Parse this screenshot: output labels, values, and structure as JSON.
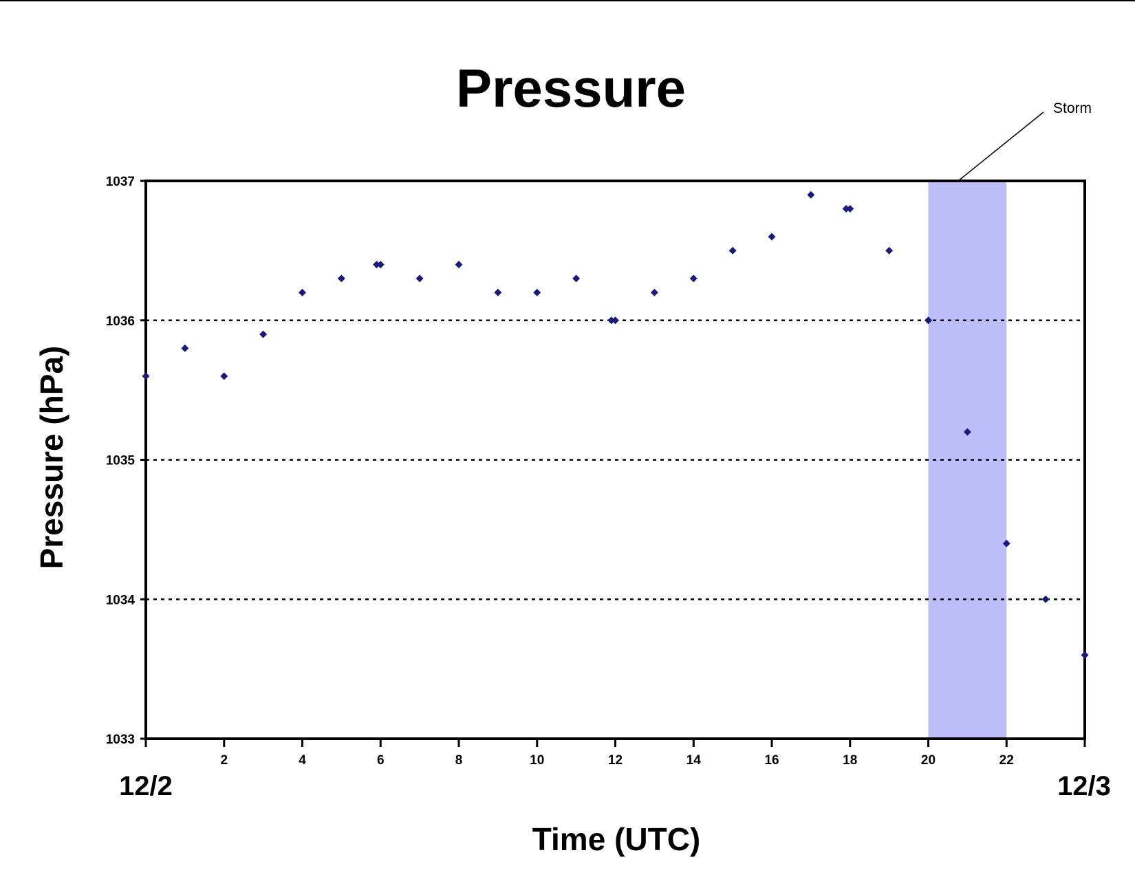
{
  "chart_data": {
    "type": "scatter",
    "title": "Pressure",
    "xlabel": "Time (UTC)",
    "ylabel": "Pressure (hPa)",
    "xlim": [
      0,
      24
    ],
    "ylim": [
      1033,
      1037
    ],
    "x_ticks": [
      0,
      2,
      4,
      6,
      8,
      10,
      12,
      14,
      16,
      18,
      20,
      22,
      24
    ],
    "x_tick_labels": [
      "",
      "2",
      "4",
      "6",
      "8",
      "10",
      "12",
      "14",
      "16",
      "18",
      "20",
      "22",
      ""
    ],
    "y_ticks": [
      1033,
      1034,
      1035,
      1036,
      1037
    ],
    "y_tick_labels": [
      "1033",
      "1034",
      "1035",
      "1036",
      "1037"
    ],
    "date_labels": {
      "start": "12/2",
      "end": "12/3"
    },
    "gridlines": "horizontal dotted",
    "marker_color": "#1a1a7a",
    "highlight": {
      "label": "Storm",
      "x_range": [
        20,
        22
      ],
      "color": "#bdbdfa"
    },
    "series": [
      {
        "points": [
          [
            0,
            1035.6
          ],
          [
            1,
            1035.8
          ],
          [
            2,
            1035.6
          ],
          [
            3,
            1035.9
          ],
          [
            4,
            1036.2
          ],
          [
            5,
            1036.3
          ],
          [
            5.9,
            1036.4
          ],
          [
            6,
            1036.4
          ],
          [
            7,
            1036.3
          ],
          [
            8,
            1036.4
          ],
          [
            9,
            1036.2
          ],
          [
            10,
            1036.2
          ],
          [
            11,
            1036.3
          ],
          [
            11.9,
            1036.0
          ],
          [
            12,
            1036.0
          ],
          [
            13,
            1036.2
          ],
          [
            14,
            1036.3
          ],
          [
            15,
            1036.5
          ],
          [
            16,
            1036.6
          ],
          [
            17,
            1036.9
          ],
          [
            17.9,
            1036.8
          ],
          [
            18,
            1036.8
          ],
          [
            19,
            1036.5
          ],
          [
            20,
            1036.0
          ],
          [
            21,
            1035.2
          ],
          [
            22,
            1034.4
          ],
          [
            23,
            1034.0
          ],
          [
            24,
            1033.6
          ]
        ]
      }
    ]
  }
}
